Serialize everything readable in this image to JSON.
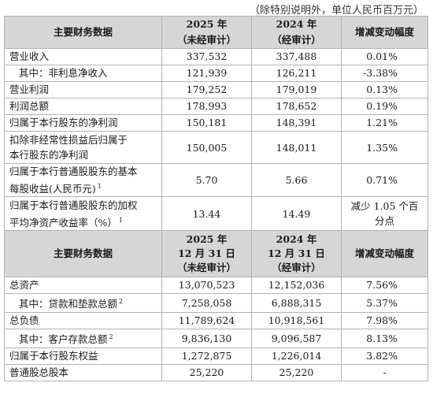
{
  "note": "（除特别说明外，单位人民币百万元）",
  "header1": {
    "label": "主要财务数据",
    "col1": [
      "2025 年",
      "（未经审计）"
    ],
    "col2": [
      "2024 年",
      "（经审计）"
    ],
    "col3": "增减变动幅度"
  },
  "rows1": [
    {
      "label": "营业收入",
      "v2025": "337,532",
      "v2024": "337,488",
      "chg": "0.01%"
    },
    {
      "label": "其中：非利息净收入",
      "v2025": "121,939",
      "v2024": "126,211",
      "chg": "-3.38%"
    },
    {
      "label": "营业利润",
      "v2025": "179,252",
      "v2024": "179,019",
      "chg": "0.13%"
    },
    {
      "label": "利润总额",
      "v2025": "178,993",
      "v2024": "178,652",
      "chg": "0.19%"
    },
    {
      "label": "归属于本行股东的净利润",
      "v2025": "150,181",
      "v2024": "148,391",
      "chg": "1.21%"
    },
    {
      "label1": "扣除非经常性损益后归属于",
      "label2": "本行股东的净利润",
      "v2025": "150,005",
      "v2024": "148,011",
      "chg": "1.35%"
    },
    {
      "label1": "归属于本行普通股股东的基本",
      "label2": "每股收益(人民币元)",
      "sup": "1",
      "v2025": "5.70",
      "v2024": "5.66",
      "chg": "0.71%"
    },
    {
      "label1": "归属于本行普通股股东的加权",
      "label2": "平均净资产收益率（%）",
      "sup": "1",
      "v2025": "13.44",
      "v2024": "14.49",
      "chg": "减少 1.05 个百分点"
    }
  ],
  "header2": {
    "label": "主要财务数据",
    "col1": [
      "2025 年",
      "12 月 31 日",
      "（未经审计）"
    ],
    "col2": [
      "2024 年",
      "12 月 31 日",
      "（经审计）"
    ],
    "col3": "增减变动幅度"
  },
  "rows2": [
    {
      "label": "总资产",
      "v2025": "13,070,523",
      "v2024": "12,152,036",
      "chg": "7.56%"
    },
    {
      "label": "其中：贷款和垫款总额",
      "sup": "2",
      "v2025": "7,258,058",
      "v2024": "6,888,315",
      "chg": "5.37%"
    },
    {
      "label": "总负债",
      "v2025": "11,789,624",
      "v2024": "10,918,561",
      "chg": "7.98%"
    },
    {
      "label": "其中：客户存款总额",
      "sup": "2",
      "v2025": "9,836,130",
      "v2024": "9,096,587",
      "chg": "8.13%"
    },
    {
      "label": "归属于本行股东权益",
      "v2025": "1,272,875",
      "v2024": "1,226,014",
      "chg": "3.82%"
    },
    {
      "label": "普通股总股本",
      "v2025": "25,220",
      "v2024": "25,220",
      "chg": "-"
    }
  ]
}
